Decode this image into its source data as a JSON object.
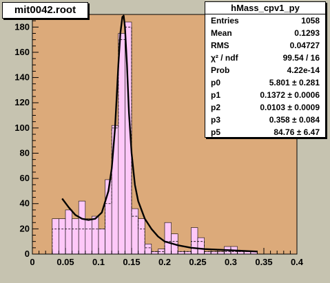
{
  "file_label": "mit0042.root",
  "stats": {
    "title": "hMass_cpv1_py",
    "rows": [
      {
        "label": "Entries",
        "value": "1058"
      },
      {
        "label": "Mean",
        "value": "0.1293"
      },
      {
        "label": "RMS",
        "value": "0.04727"
      },
      {
        "label": "χ² / ndf",
        "value": "99.54 / 16"
      },
      {
        "label": "Prob",
        "value": "4.22e-14"
      },
      {
        "label": "p0",
        "value": "5.801 ± 0.281"
      },
      {
        "label": "p1",
        "value": "0.1372 ± 0.0006"
      },
      {
        "label": "p2",
        "value": "0.0103 ± 0.0009"
      },
      {
        "label": "p3",
        "value": "0.358 ± 0.084"
      },
      {
        "label": "p5",
        "value": "84.76 ± 6.47"
      }
    ]
  },
  "colors": {
    "frame": "#dcaa7a",
    "fill": "#fec8f8",
    "fit_line": "#000000"
  },
  "chart_data": {
    "type": "bar",
    "title": "",
    "xlabel": "",
    "ylabel": "",
    "xlim": [
      0,
      0.4
    ],
    "ylim": [
      0,
      190
    ],
    "x_ticks": [
      "0",
      "0.05",
      "0.1",
      "0.15",
      "0.2",
      "0.25",
      "0.3",
      "0.35",
      "0.4"
    ],
    "y_ticks": [
      "0",
      "20",
      "40",
      "60",
      "80",
      "100",
      "120",
      "140",
      "160",
      "180"
    ],
    "bin_width": 0.01,
    "series": [
      {
        "bin_starts": [
          0.03,
          0.04,
          0.05,
          0.06,
          0.07,
          0.08,
          0.09,
          0.1,
          0.11,
          0.12,
          0.13,
          0.14,
          0.15,
          0.16,
          0.17,
          0.18,
          0.19,
          0.2,
          0.21,
          0.22,
          0.23,
          0.24,
          0.25,
          0.26,
          0.27,
          0.28,
          0.29,
          0.3,
          0.31,
          0.32,
          0.33,
          0.34
        ],
        "values": [
          28,
          28,
          35,
          28,
          42,
          28,
          30,
          20,
          59,
          102,
          175,
          184,
          36,
          28,
          8,
          2,
          4,
          25,
          16,
          2,
          2,
          21,
          13,
          2,
          2,
          2,
          6,
          6,
          2,
          2,
          2,
          0
        ]
      },
      {
        "bin_starts": [
          0.03,
          0.04,
          0.05,
          0.06,
          0.07,
          0.08,
          0.09,
          0.1,
          0.11,
          0.12,
          0.13,
          0.14,
          0.15,
          0.16,
          0.17,
          0.18,
          0.19,
          0.2,
          0.21,
          0.22,
          0.23,
          0.24,
          0.25,
          0.26,
          0.27,
          0.28,
          0.29,
          0.3,
          0.31,
          0.32,
          0.33,
          0.34
        ],
        "values": [
          20,
          20,
          20,
          20,
          20,
          20,
          20,
          20,
          40,
          100,
          170,
          180,
          30,
          20,
          5,
          2,
          2,
          10,
          10,
          2,
          2,
          10,
          10,
          2,
          2,
          2,
          2,
          2,
          2,
          2,
          2,
          0
        ]
      }
    ],
    "fit_curve": {
      "x": [
        0.045,
        0.055,
        0.065,
        0.075,
        0.085,
        0.095,
        0.105,
        0.115,
        0.12,
        0.125,
        0.13,
        0.133,
        0.136,
        0.138,
        0.14,
        0.143,
        0.146,
        0.15,
        0.155,
        0.16,
        0.17,
        0.18,
        0.19,
        0.2,
        0.22,
        0.24,
        0.26,
        0.3,
        0.34
      ],
      "y": [
        44,
        37,
        31,
        28,
        27,
        28,
        33,
        50,
        68,
        100,
        150,
        175,
        188,
        189,
        180,
        150,
        112,
        80,
        55,
        42,
        28,
        20,
        14,
        10,
        7,
        5,
        4,
        3,
        2
      ]
    }
  }
}
